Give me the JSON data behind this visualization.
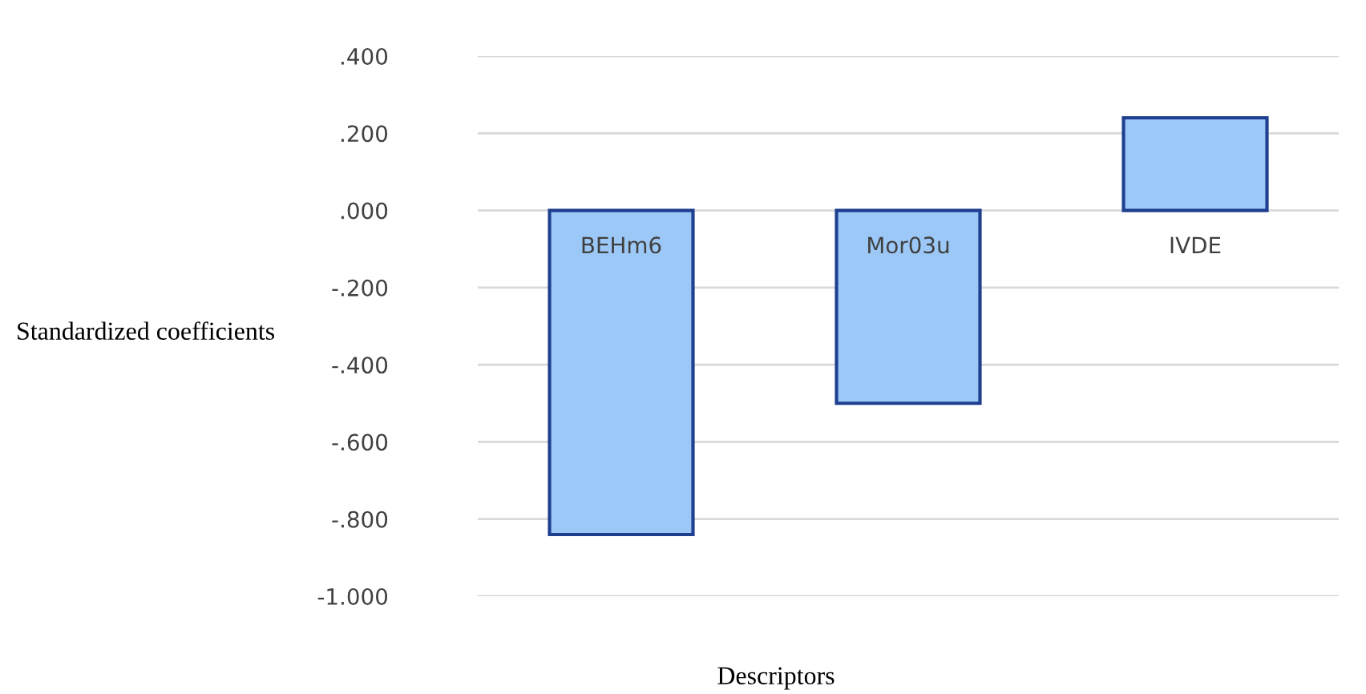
{
  "chart_data": {
    "type": "bar",
    "xlabel": "Descriptors",
    "ylabel": "Standardized coefficients",
    "categories": [
      "BEHm6",
      "Mor03u",
      "IVDE"
    ],
    "values": [
      -0.84,
      -0.5,
      0.24
    ],
    "color": "#9cc8f7",
    "ylim": [
      -1.0,
      0.4
    ],
    "yticks": [
      {
        "value": 0.4,
        "label": ".400"
      },
      {
        "value": 0.2,
        "label": ".200"
      },
      {
        "value": 0.0,
        "label": ".000"
      },
      {
        "value": -0.2,
        "label": "-.200"
      },
      {
        "value": -0.4,
        "label": "-.400"
      },
      {
        "value": -0.6,
        "label": "-.600"
      },
      {
        "value": -0.8,
        "label": "-.800"
      },
      {
        "value": -1.0,
        "label": "-1.000"
      }
    ],
    "grid": "y",
    "legend": false
  }
}
